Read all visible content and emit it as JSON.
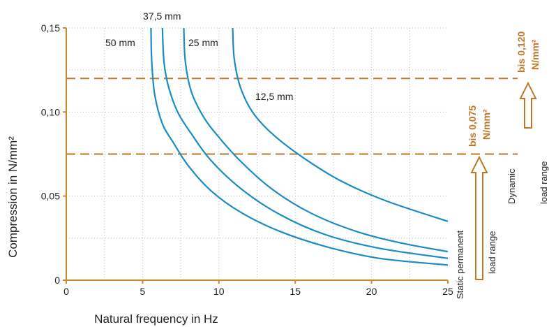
{
  "colors": {
    "axis": "#c98a2b",
    "curve": "#1a8cc4",
    "grid": "#b8b8b8",
    "limit": "#c0772a"
  },
  "chart_data": {
    "type": "line",
    "xlabel": "Natural frequency in Hz",
    "ylabel": "Compression in N/mm²",
    "xlim": [
      0,
      25
    ],
    "ylim": [
      0,
      0.15
    ],
    "x_ticks": [
      {
        "value": 0,
        "label": "0"
      },
      {
        "value": 5,
        "label": "5"
      },
      {
        "value": 10,
        "label": "10"
      },
      {
        "value": 15,
        "label": "15"
      },
      {
        "value": 20,
        "label": "20"
      },
      {
        "value": 25,
        "label": "25"
      }
    ],
    "y_ticks": [
      {
        "value": 0,
        "label": "0"
      },
      {
        "value": 0.05,
        "label": "0,05"
      },
      {
        "value": 0.1,
        "label": "0,10"
      },
      {
        "value": 0.15,
        "label": "0,15"
      }
    ],
    "grid": true,
    "series": [
      {
        "name": "50 mm",
        "x": [
          5.55,
          5.6,
          5.8,
          6.3,
          7.0,
          8.0,
          9.5,
          11.5,
          14.0,
          17.0,
          20.5,
          25.0
        ],
        "y": [
          0.15,
          0.13,
          0.11,
          0.093,
          0.082,
          0.068,
          0.053,
          0.04,
          0.029,
          0.02,
          0.013,
          0.009
        ]
      },
      {
        "name": "37,5 mm",
        "x": [
          6.3,
          6.4,
          6.7,
          7.3,
          8.2,
          9.5,
          11.5,
          14.0,
          17.0,
          20.5,
          25.0
        ],
        "y": [
          0.15,
          0.13,
          0.115,
          0.1,
          0.087,
          0.071,
          0.054,
          0.039,
          0.027,
          0.019,
          0.013
        ]
      },
      {
        "name": "25 mm",
        "x": [
          7.7,
          7.8,
          8.2,
          9.0,
          10.0,
          11.5,
          13.5,
          16.0,
          19.0,
          22.0,
          25.0
        ],
        "y": [
          0.15,
          0.13,
          0.112,
          0.097,
          0.085,
          0.07,
          0.054,
          0.04,
          0.029,
          0.022,
          0.017
        ]
      },
      {
        "name": "12,5 mm",
        "x": [
          10.9,
          11.0,
          11.4,
          12.2,
          13.5,
          15.5,
          18.0,
          21.0,
          25.0
        ],
        "y": [
          0.15,
          0.132,
          0.115,
          0.1,
          0.087,
          0.073,
          0.059,
          0.047,
          0.035
        ]
      }
    ],
    "annotations": {
      "static_limit": {
        "value": 0.075,
        "label_line1": "bis 0,075",
        "label_line2": "N/mm²",
        "range_line1": "Static permanent",
        "range_line2": "load range"
      },
      "dynamic_limit": {
        "value": 0.12,
        "label_line1": "bis 0,120",
        "label_line2": "N/mm²",
        "range_line1": "Dynamic",
        "range_line2": "load range"
      }
    }
  }
}
